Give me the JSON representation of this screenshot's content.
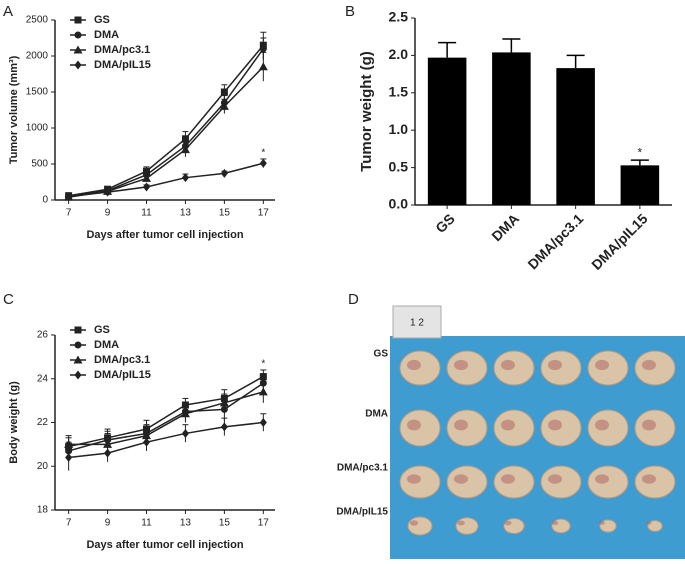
{
  "chart_data": [
    {
      "type": "line",
      "panel": "A",
      "y_label": "Tumor volume (mm³)",
      "x_label": "Days after tumor cell injection",
      "x": [
        7,
        9,
        11,
        13,
        15,
        17
      ],
      "xlim": [
        6.3,
        17.6
      ],
      "xticks": [
        7,
        9,
        11,
        13,
        15,
        17
      ],
      "ylim": [
        0,
        2500
      ],
      "yticks": [
        0,
        500,
        1000,
        1500,
        2000,
        2500
      ],
      "series": [
        {
          "name": "GS",
          "color": "#222222",
          "marker": "square",
          "values": [
            60,
            150,
            400,
            850,
            1500,
            2150
          ],
          "errors": [
            20,
            30,
            60,
            100,
            100,
            180
          ]
        },
        {
          "name": "DMA",
          "color": "#222222",
          "marker": "circle",
          "values": [
            50,
            130,
            350,
            750,
            1350,
            2100
          ],
          "errors": [
            20,
            30,
            50,
            100,
            100,
            150
          ]
        },
        {
          "name": "DMA/pc3.1",
          "color": "#222222",
          "marker": "triangle",
          "values": [
            40,
            120,
            300,
            700,
            1300,
            1850
          ],
          "errors": [
            20,
            30,
            50,
            100,
            100,
            200
          ]
        },
        {
          "name": "DMA/pIL15",
          "color": "#222222",
          "marker": "diamond",
          "values": [
            50,
            110,
            180,
            310,
            370,
            510
          ],
          "errors": [
            15,
            20,
            30,
            50,
            30,
            60
          ],
          "annotations": [
            null,
            null,
            null,
            null,
            null,
            "*"
          ]
        }
      ]
    },
    {
      "type": "bar",
      "panel": "B",
      "y_label": "Tumor weight (g)",
      "categories": [
        "GS",
        "DMA",
        "DMA/pc3.1",
        "DMA/pIL15"
      ],
      "values": [
        1.97,
        2.04,
        1.83,
        0.53
      ],
      "errors": [
        0.2,
        0.18,
        0.17,
        0.07
      ],
      "annotations": [
        null,
        null,
        null,
        "*"
      ],
      "color": "#000000",
      "ylim": [
        0,
        2.5
      ],
      "yticks": [
        {
          "value": 0,
          "label": "0.0"
        },
        0.5,
        {
          "value": 1,
          "label": "1.0"
        },
        1.5,
        {
          "value": 2,
          "label": "2.0"
        },
        2.5
      ]
    },
    {
      "type": "line",
      "panel": "C",
      "y_label": "Body weight (g)",
      "x_label": "Days after tumor cell injection",
      "x": [
        7,
        9,
        11,
        13,
        15,
        17
      ],
      "xlim": [
        6.3,
        17.6
      ],
      "xticks": [
        7,
        9,
        11,
        13,
        15,
        17
      ],
      "ylim": [
        18,
        26
      ],
      "yticks": [
        18,
        20,
        22,
        24,
        26
      ],
      "series": [
        {
          "name": "GS",
          "color": "#222222",
          "marker": "square",
          "values": [
            20.9,
            21.3,
            21.7,
            22.8,
            23.1,
            24.1
          ],
          "errors": [
            0.4,
            0.4,
            0.4,
            0.3,
            0.4,
            0.3
          ],
          "annotations": [
            null,
            null,
            null,
            null,
            null,
            "*"
          ]
        },
        {
          "name": "DMA",
          "color": "#222222",
          "marker": "circle",
          "values": [
            20.7,
            21.2,
            21.5,
            22.5,
            22.6,
            23.8
          ],
          "errors": [
            0.4,
            0.4,
            0.4,
            0.4,
            0.5,
            0.4
          ]
        },
        {
          "name": "DMA/pc3.1",
          "color": "#222222",
          "marker": "triangle",
          "values": [
            21.0,
            21.0,
            21.4,
            22.4,
            22.9,
            23.4
          ],
          "errors": [
            0.4,
            0.5,
            0.4,
            0.4,
            0.4,
            0.5
          ]
        },
        {
          "name": "DMA/pIL15",
          "color": "#222222",
          "marker": "diamond",
          "values": [
            20.4,
            20.6,
            21.1,
            21.5,
            21.8,
            22.0
          ],
          "errors": [
            0.6,
            0.4,
            0.4,
            0.4,
            0.4,
            0.4
          ]
        }
      ]
    }
  ],
  "photo": {
    "panel": "D",
    "ruler": "1  2",
    "rows": [
      "GS",
      "DMA",
      "DMA/pc3.1",
      "DMA/pIL15"
    ]
  }
}
